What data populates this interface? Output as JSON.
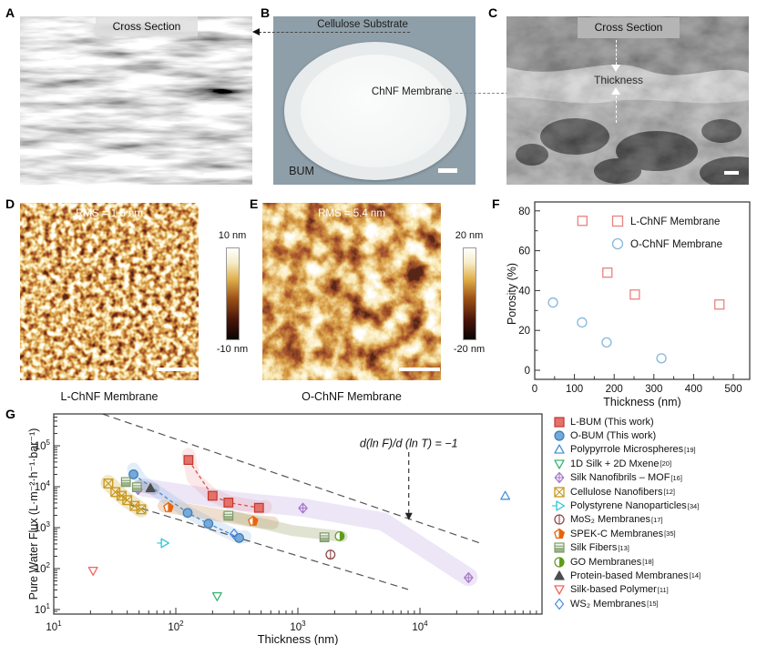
{
  "panels": {
    "a": {
      "label": "A",
      "overlay": "Cross Section"
    },
    "b": {
      "label": "B",
      "substrate": "Cellulose Substrate",
      "membrane": "ChNF Membrane",
      "bum": "BUM"
    },
    "c": {
      "label": "C",
      "overlay": "Cross Section",
      "thickness": "Thickness"
    },
    "d": {
      "label": "D",
      "rms": "RMS = 1.5 nm",
      "cb_top": "10 nm",
      "cb_bottom": "-10 nm",
      "caption": "L-ChNF Membrane"
    },
    "e": {
      "label": "E",
      "rms": "RMS = 5.4 nm",
      "cb_top": "20 nm",
      "cb_bottom": "-20 nm",
      "caption": "O-ChNF Membrane"
    },
    "f": {
      "label": "F"
    },
    "g": {
      "label": "G"
    }
  },
  "colors": {
    "panelB_bg": "#8e9fa9",
    "axis": "#333333",
    "guide_dash": "#555555"
  },
  "chart_data": [
    {
      "type": "scatter",
      "title": "",
      "xlabel": "Thickness (nm)",
      "ylabel": "Porosity (%)",
      "xlim": [
        0,
        541
      ],
      "ylim": [
        -4.5,
        84.5
      ],
      "xticks": [
        0,
        100,
        200,
        300,
        400,
        500
      ],
      "yticks": [
        0,
        20,
        40,
        60,
        80
      ],
      "x_minor_step": 50,
      "y_minor_step": 10,
      "legend_position": "top-right",
      "series": [
        {
          "name": "L-ChNF Membrane",
          "marker": "square_o",
          "color": "#e8837c",
          "points": [
            [
              120,
              75
            ],
            [
              183,
              49
            ],
            [
              252,
              38
            ],
            [
              465,
              33
            ]
          ]
        },
        {
          "name": "O-ChNF Membrane",
          "marker": "circle_o",
          "color": "#85b8dc",
          "points": [
            [
              46,
              34
            ],
            [
              119,
              24
            ],
            [
              181,
              14
            ],
            [
              319,
              6
            ]
          ]
        }
      ]
    },
    {
      "type": "scatter",
      "xscale": "log",
      "yscale": "log",
      "xlabel": "Thickness (nm)",
      "ylabel": "Pure Water Flux (L·m⁻²·h⁻¹·bar⁻¹)",
      "xlim": [
        9,
        100000
      ],
      "ylim": [
        8,
        600000
      ],
      "xticks": [
        10,
        100,
        1000,
        10000
      ],
      "yticks": [
        10,
        100,
        1000,
        10000,
        100000
      ],
      "annotation": {
        "text": "d(ln F)/d (ln T) = −1",
        "x": 8100,
        "y": 115000,
        "arrow_from_y": 70000,
        "arrow_to_y": 2300
      },
      "guide_lines": [
        {
          "from": [
            25,
            600000
          ],
          "to": [
            31000,
            420
          ]
        },
        {
          "from": [
            42,
            3600
          ],
          "to": [
            8000,
            31
          ]
        }
      ],
      "bands": [
        {
          "color": "rgba(190,165,225,0.28)",
          "width": 20,
          "spine": [
            [
              55,
              9500
            ],
            [
              300,
              4500
            ],
            [
              1100,
              3100
            ],
            [
              5000,
              1400
            ],
            [
              25000,
              62
            ]
          ]
        },
        {
          "color": "rgba(210,180,80,0.30)",
          "width": 17,
          "spine": [
            [
              28,
              12500
            ],
            [
              38,
              5200
            ],
            [
              52,
              2750
            ]
          ]
        },
        {
          "color": "rgba(205,150,95,0.30)",
          "width": 14,
          "spine": [
            [
              80,
              3400
            ],
            [
              430,
              1450
            ],
            [
              620,
              1300
            ]
          ]
        },
        {
          "color": "rgba(165,175,125,0.35)",
          "width": 12,
          "spine": [
            [
              265,
              2000
            ],
            [
              900,
              850
            ],
            [
              2300,
              610
            ]
          ]
        },
        {
          "color": "rgba(120,120,120,0.25)",
          "width": 13,
          "spine": [
            [
              50,
              10500
            ],
            [
              66,
              8800
            ]
          ]
        },
        {
          "color": "rgba(110,165,220,0.20)",
          "width": 14,
          "spine": [
            [
              45,
              27000
            ],
            [
              52,
              14000
            ],
            [
              125,
              2400
            ],
            [
              185,
              1300
            ],
            [
              330,
              580
            ],
            [
              370,
              600
            ]
          ]
        },
        {
          "color": "rgba(233,130,130,0.18)",
          "width": 15,
          "spine": [
            [
              127,
              60000
            ],
            [
              140,
              16000
            ],
            [
              200,
              6200
            ],
            [
              270,
              4200
            ],
            [
              480,
              3100
            ],
            [
              540,
              3200
            ]
          ]
        }
      ],
      "series": [
        {
          "name": "L-BUM (This work)",
          "ref": "",
          "marker": "square_f",
          "color": "#c0392b",
          "fill": "#e4716b",
          "line": {
            "color": "#d94f4f",
            "dash": "4 3"
          },
          "points": [
            [
              127,
              45000
            ],
            [
              200,
              6000
            ],
            [
              270,
              4100
            ],
            [
              480,
              3050
            ]
          ]
        },
        {
          "name": "O-BUM (This work)",
          "ref": "",
          "marker": "circle_f",
          "color": "#3d7ab5",
          "fill": "#74a9d8",
          "line": {
            "color": "#4d87c7",
            "dash": "4 3"
          },
          "points": [
            [
              45,
              20000
            ],
            [
              125,
              2300
            ],
            [
              185,
              1250
            ],
            [
              330,
              560
            ]
          ]
        },
        {
          "name": "Polypyrrole Microspheres",
          "ref": "[19]",
          "marker": "triu_o",
          "color": "#4a90d9",
          "points": [
            [
              50000,
              6000
            ]
          ]
        },
        {
          "name": "1D Silk + 2D Mxene",
          "ref": "[20]",
          "marker": "trid_o",
          "color": "#3cb371",
          "points": [
            [
              218,
              21
            ]
          ]
        },
        {
          "name": "Silk Nanofibrils – MOF",
          "ref": "[16]",
          "marker": "diamond_plus",
          "color": "#a678c8",
          "points": [
            [
              49,
              8500
            ],
            [
              1100,
              3000
            ],
            [
              25000,
              60
            ]
          ]
        },
        {
          "name": "Cellulose Nanofibers",
          "ref": "[12]",
          "marker": "square_x",
          "color": "#c9971c",
          "points": [
            [
              28,
              12000
            ],
            [
              32,
              7400
            ],
            [
              36,
              6000
            ],
            [
              40,
              4700
            ],
            [
              46,
              3400
            ],
            [
              52,
              2800
            ]
          ]
        },
        {
          "name": "Polystyrene Nanoparticles",
          "ref": "[34]",
          "marker": "trir_o",
          "color": "#2ec4d6",
          "points": [
            [
              80,
              420
            ]
          ]
        },
        {
          "name": "MoS₂ Membranes",
          "ref": "[17]",
          "marker": "circle_vline",
          "color": "#8d4a4a",
          "points": [
            [
              1850,
              220
            ]
          ]
        },
        {
          "name": "SPEK-C Membranes",
          "ref": "[35]",
          "marker": "pentagon_r",
          "color": "#e8650d",
          "points": [
            [
              87,
              3100
            ],
            [
              430,
              1440
            ]
          ]
        },
        {
          "name": "Silk Fibers",
          "ref": "[13]",
          "marker": "square_lines",
          "color": "#7d9b6a",
          "points": [
            [
              39,
              13000
            ],
            [
              48,
              9700
            ],
            [
              270,
              1950
            ],
            [
              1650,
              580
            ]
          ]
        },
        {
          "name": "GO Membranes",
          "ref": "[18]",
          "marker": "circle_r",
          "color": "#5e9c1b",
          "points": [
            [
              2200,
              620
            ]
          ]
        },
        {
          "name": "Protein-based Membranes",
          "ref": "[14]",
          "marker": "triu_f",
          "color": "#4d4d4d",
          "points": [
            [
              62,
              9200
            ]
          ]
        },
        {
          "name": "Silk-based Polymer",
          "ref": "[11]",
          "marker": "trid_o",
          "color": "#f26659",
          "points": [
            [
              21,
              88
            ]
          ]
        },
        {
          "name": "WS₂ Membranes",
          "ref": "[15]",
          "marker": "diamond_o",
          "color": "#4d8fe8",
          "points": [
            [
              300,
              700
            ]
          ]
        }
      ]
    }
  ]
}
